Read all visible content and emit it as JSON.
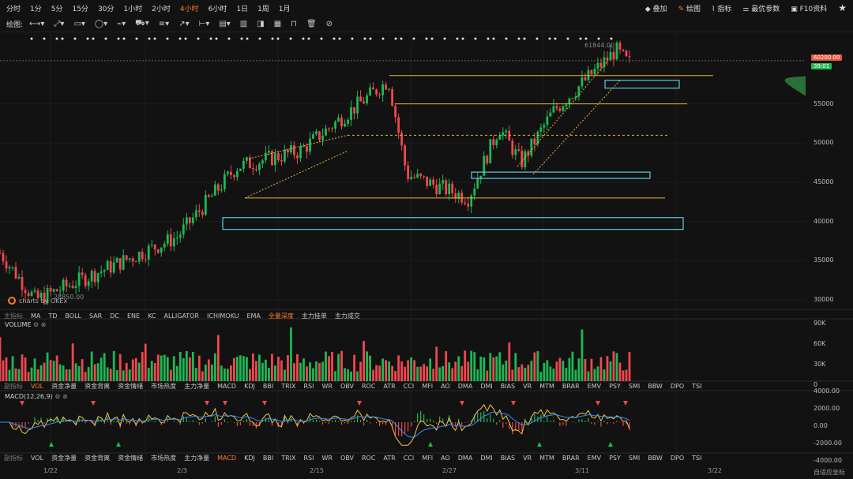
{
  "toolbar": {
    "timeframes": [
      "分时",
      "1分",
      "5分",
      "15分",
      "30分",
      "1小时",
      "2小时",
      "4小时",
      "6小时",
      "1日",
      "1周",
      "1月"
    ],
    "active_timeframe": "4小时",
    "right": {
      "overlay": "叠加",
      "draw": "绘图",
      "indicator": "指标",
      "params": "最优参数",
      "f10": "F10资料"
    }
  },
  "drawbar": {
    "label": "绘图:"
  },
  "price_axis": {
    "ticks": [
      {
        "label": "55000",
        "v": 55000
      },
      {
        "label": "50000",
        "v": 50000
      },
      {
        "label": "45000",
        "v": 45000
      },
      {
        "label": "40000",
        "v": 40000
      },
      {
        "label": "35000",
        "v": 35000
      },
      {
        "label": "30000",
        "v": 30000
      }
    ],
    "current_price": "60200.00",
    "countdown": "39:01",
    "high_label": "61844.00",
    "low_label": "28850.00"
  },
  "watermark": "charts by OKEx",
  "main_indicators": {
    "items": [
      "主指标",
      "MA",
      "TD",
      "BOLL",
      "SAR",
      "DC",
      "ENE",
      "KC",
      "ALLIGATOR",
      "ICHIMOKU",
      "EMA",
      "全量深度",
      "主力挂单",
      "主力成交"
    ],
    "active": "全量深度"
  },
  "volume": {
    "title": "VOLUME",
    "ticks": [
      "90K",
      "60K",
      "30K",
      "0"
    ]
  },
  "sub_indicators_1": {
    "items": [
      "副指标",
      "VOL",
      "资金净量",
      "资金背离",
      "资金情绪",
      "市场热度",
      "主力净量",
      "MACD",
      "KDJ",
      "BBI",
      "TRIX",
      "RSI",
      "WR",
      "OBV",
      "ROC",
      "ATR",
      "CCI",
      "MFI",
      "AO",
      "DMA",
      "DMI",
      "BIAS",
      "VR",
      "MTM",
      "BRAR",
      "EMV",
      "PSY",
      "SMI",
      "BBW",
      "DPO",
      "TSI"
    ],
    "active": "VOL"
  },
  "macd": {
    "title": "MACD(12,26,9)",
    "ticks": [
      "4000.00",
      "2000.00",
      "0.00",
      "-2000.00",
      "-4000.00"
    ]
  },
  "sub_indicators_2": {
    "items": [
      "副指标",
      "VOL",
      "资金净量",
      "资金背离",
      "资金情绪",
      "市场热度",
      "主力净量",
      "MACD",
      "KDJ",
      "BBI",
      "TRIX",
      "RSI",
      "WR",
      "OBV",
      "ROC",
      "ATR",
      "CCI",
      "MFI",
      "AO",
      "DMA",
      "DMI",
      "BIAS",
      "VR",
      "MTM",
      "BRAR",
      "EMV",
      "PSY",
      "SMI",
      "BBW",
      "DPO",
      "TSI"
    ],
    "active": "MACD"
  },
  "x_axis": {
    "labels": [
      "1/22",
      "2/3",
      "2/15",
      "2/27",
      "3/11",
      "3/22"
    ]
  },
  "footer": "自适应坐标",
  "colors": {
    "up": "#1db954",
    "down": "#f2474e",
    "accent": "#ff7a2e",
    "gold": "#e8b53a",
    "cyan": "#5fc9e6",
    "depth": "#2d7a3a"
  },
  "chart_data": {
    "type": "candlestick",
    "price_range": [
      28000,
      62000
    ],
    "key_points": [
      {
        "date": "1/22",
        "price": 36000
      },
      {
        "date": "1/27",
        "price": 30000
      },
      {
        "date": "2/3",
        "price": 38000
      },
      {
        "date": "2/8",
        "price": 47000
      },
      {
        "date": "2/14",
        "price": 49000
      },
      {
        "date": "2/21",
        "price": 58000
      },
      {
        "date": "2/23",
        "price": 46000
      },
      {
        "date": "2/28",
        "price": 43000
      },
      {
        "date": "3/3",
        "price": 52000
      },
      {
        "date": "3/6",
        "price": 47500
      },
      {
        "date": "3/9",
        "price": 54000
      },
      {
        "date": "3/13",
        "price": 61844
      },
      {
        "date": "3/14",
        "price": 60200
      }
    ],
    "horizontal_levels": [
      58600,
      55000,
      51000,
      43000
    ],
    "zones": [
      [
        39000,
        40500
      ],
      [
        45700,
        46300
      ],
      [
        57000,
        58000
      ]
    ],
    "volume_max": 90000,
    "macd_range": [
      -4000,
      4000
    ]
  }
}
